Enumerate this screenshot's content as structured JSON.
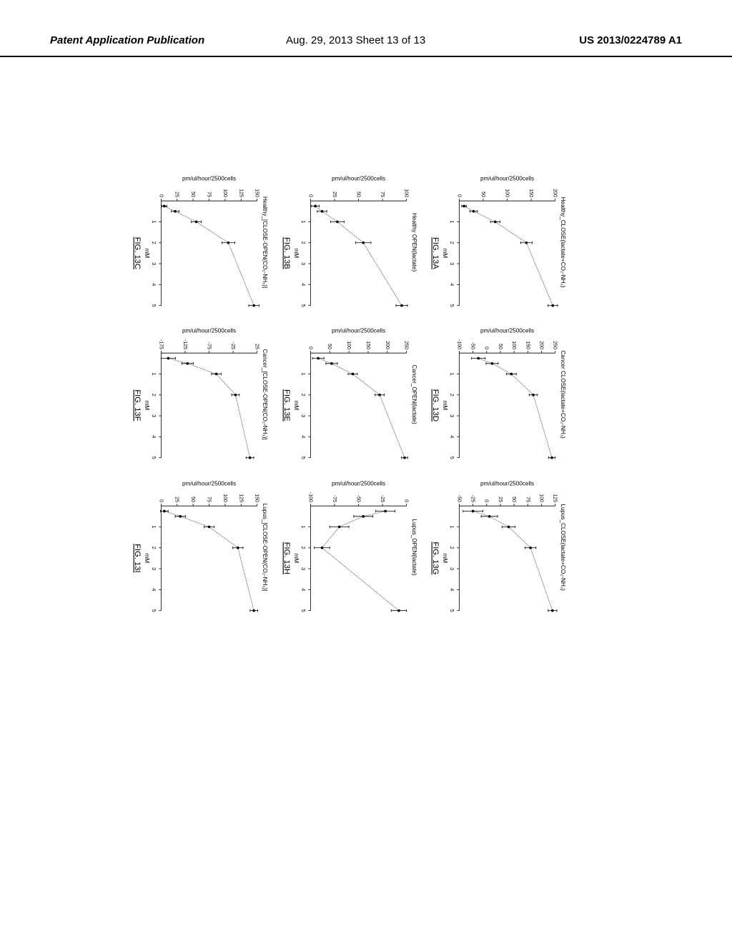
{
  "header": {
    "left": "Patent Application Publication",
    "center": "Aug. 29, 2013  Sheet 13 of 13",
    "right": "US 2013/0224789 A1"
  },
  "x_axis": {
    "label": "mM",
    "min": 0,
    "max": 5,
    "ticks": [
      1,
      2,
      3,
      4,
      5
    ],
    "label_fontsize": 8,
    "tick_fontsize": 7
  },
  "global_y_axis_label": "pm/ul/hour/2500cells",
  "style": {
    "background_color": "#ffffff",
    "axis_color": "#000000",
    "dot_color": "#000000",
    "curve_color": "#555555",
    "curve_dash": "1 1",
    "title_fontsize": 8,
    "axis_label_fontsize": 8,
    "tick_fontsize": 7,
    "errorbar_halfwidth": 0.06,
    "marker_radius": 1.8
  },
  "panels": [
    {
      "id": "A",
      "fig": "FIG. 13A",
      "title": "Healthy_CLOSE(lactate+CO₂-NH₃)",
      "ymin": 0,
      "ymax": 200,
      "yticks": [
        0,
        50,
        100,
        150,
        200
      ],
      "x": [
        0.25,
        0.5,
        1,
        2,
        5
      ],
      "y": [
        10,
        30,
        75,
        140,
        195
      ],
      "err": [
        5,
        8,
        10,
        12,
        10
      ]
    },
    {
      "id": "B",
      "fig": "FIG. 13B",
      "title": "Healthy OPEN(lactate)",
      "ymin": 0,
      "ymax": 100,
      "yticks": [
        0,
        25,
        50,
        75,
        100
      ],
      "x": [
        0.25,
        0.5,
        1,
        2,
        5
      ],
      "y": [
        5,
        12,
        28,
        55,
        95
      ],
      "err": [
        4,
        5,
        7,
        8,
        6
      ]
    },
    {
      "id": "C",
      "fig": "FIG. 13C",
      "title": "Healthy_[CLOSE-OPEN(CO₂-NH₃)]",
      "ymin": 0,
      "ymax": 150,
      "yticks": [
        0,
        25,
        50,
        75,
        100,
        125,
        150
      ],
      "x": [
        0.25,
        0.5,
        1,
        2,
        5
      ],
      "y": [
        5,
        22,
        55,
        105,
        145
      ],
      "err": [
        4,
        6,
        8,
        10,
        8
      ]
    },
    {
      "id": "D",
      "fig": "FIG. 13D",
      "title": "Cancer CLOSE(lactate+CO₂-NH₃)",
      "ymin": -100,
      "ymax": 250,
      "yticks": [
        -100,
        -50,
        0,
        50,
        100,
        150,
        200,
        250
      ],
      "x": [
        0.25,
        0.5,
        1,
        2,
        5
      ],
      "y": [
        -30,
        20,
        90,
        170,
        238
      ],
      "err": [
        25,
        22,
        18,
        15,
        12
      ]
    },
    {
      "id": "E",
      "fig": "FIG. 13E",
      "title": "Cancer_OPEN(lactate)",
      "ymin": 0,
      "ymax": 250,
      "yticks": [
        0,
        50,
        100,
        150,
        200,
        250
      ],
      "x": [
        0.25,
        0.5,
        1,
        2,
        5
      ],
      "y": [
        20,
        55,
        110,
        180,
        245
      ],
      "err": [
        15,
        15,
        12,
        12,
        8
      ]
    },
    {
      "id": "F",
      "fig": "FIG. 13F",
      "title": "Cancer_[CLOSE-OPEN(CO₂-NH₃)]",
      "ymin": -175,
      "ymax": 25,
      "yticks": [
        -175,
        -125,
        -75,
        -25,
        25
      ],
      "x": [
        0.25,
        0.5,
        1,
        2,
        5
      ],
      "y": [
        -160,
        -120,
        -60,
        -20,
        10
      ],
      "err": [
        15,
        12,
        10,
        8,
        8
      ]
    },
    {
      "id": "G",
      "fig": "FIG. 13G",
      "title": "Lupus_CLOSE(lactate+CO₂-NH₃)",
      "ymin": -50,
      "ymax": 125,
      "yticks": [
        -50,
        -25,
        0,
        25,
        50,
        75,
        100,
        125
      ],
      "x": [
        0.25,
        0.5,
        1,
        2,
        5
      ],
      "y": [
        -25,
        5,
        40,
        80,
        120
      ],
      "err": [
        18,
        15,
        12,
        10,
        8
      ]
    },
    {
      "id": "H",
      "fig": "FIG. 13H",
      "title": "Lupus_OPEN(lactate)",
      "ymin": -100,
      "ymax": 0,
      "yticks": [
        -100,
        -75,
        -50,
        -25,
        0
      ],
      "x": [
        0.25,
        0.5,
        1,
        2,
        5
      ],
      "y": [
        -22,
        -45,
        -70,
        -88,
        -8
      ],
      "err": [
        10,
        10,
        10,
        8,
        8
      ]
    },
    {
      "id": "I",
      "fig": "FIG. 13I",
      "title": "Lupus_[CLOSE-OPEN(CO₂-NH₃)]",
      "ymin": 0,
      "ymax": 150,
      "yticks": [
        0,
        25,
        50,
        75,
        100,
        125,
        150
      ],
      "x": [
        0.25,
        0.5,
        1,
        2,
        5
      ],
      "y": [
        5,
        30,
        75,
        120,
        145
      ],
      "err": [
        6,
        8,
        8,
        8,
        6
      ]
    }
  ]
}
